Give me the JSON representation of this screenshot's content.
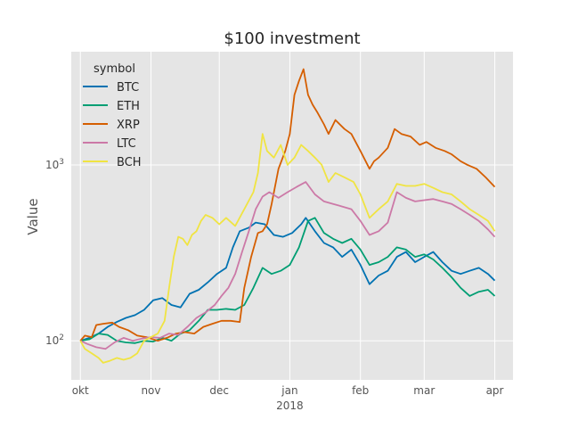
{
  "chart_data": {
    "type": "line",
    "title": "$100 investment",
    "xlabel": "",
    "ylabel": "Value",
    "yscale": "log",
    "ylim": [
      60,
      4400
    ],
    "xlim": [
      "2017-09-27",
      "2018-04-09"
    ],
    "x_ticks": [
      {
        "date": "2017-10-01",
        "label": "okt"
      },
      {
        "date": "2017-11-01",
        "label": "nov"
      },
      {
        "date": "2017-12-01",
        "label": "dec"
      },
      {
        "date": "2018-01-01",
        "label": "jan"
      },
      {
        "date": "2018-02-01",
        "label": "feb"
      },
      {
        "date": "2018-03-01",
        "label": "mar"
      },
      {
        "date": "2018-04-01",
        "label": "apr"
      }
    ],
    "x_year_label": {
      "date": "2018-01-01",
      "label": "2018"
    },
    "y_ticks": [
      {
        "value": 100,
        "base": "10",
        "exp": "2"
      },
      {
        "value": 1000,
        "base": "10",
        "exp": "3"
      }
    ],
    "grid": true,
    "legend": {
      "title": "symbol",
      "position": "top-left"
    },
    "series": [
      {
        "name": "BTC",
        "color": "#0072B2",
        "points": [
          [
            "2017-10-01",
            100
          ],
          [
            "2017-10-05",
            104
          ],
          [
            "2017-10-09",
            110
          ],
          [
            "2017-10-13",
            120
          ],
          [
            "2017-10-17",
            128
          ],
          [
            "2017-10-21",
            135
          ],
          [
            "2017-10-25",
            140
          ],
          [
            "2017-10-29",
            150
          ],
          [
            "2017-11-02",
            170
          ],
          [
            "2017-11-06",
            175
          ],
          [
            "2017-11-10",
            160
          ],
          [
            "2017-11-14",
            155
          ],
          [
            "2017-11-18",
            185
          ],
          [
            "2017-11-22",
            195
          ],
          [
            "2017-11-26",
            215
          ],
          [
            "2017-11-30",
            240
          ],
          [
            "2017-12-04",
            260
          ],
          [
            "2017-12-07",
            340
          ],
          [
            "2017-12-10",
            420
          ],
          [
            "2017-12-14,",
            440
          ],
          [
            "2017-12-17",
            470
          ],
          [
            "2017-12-21",
            460
          ],
          [
            "2017-12-25",
            400
          ],
          [
            "2017-12-29",
            390
          ],
          [
            "2018-01-02",
            410
          ],
          [
            "2018-01-06",
            460
          ],
          [
            "2018-01-08",
            500
          ],
          [
            "2018-01-12",
            420
          ],
          [
            "2018-01-16",
            360
          ],
          [
            "2018-01-20",
            340
          ],
          [
            "2018-01-24",
            300
          ],
          [
            "2018-01-28",
            330
          ],
          [
            "2018-02-01",
            270
          ],
          [
            "2018-02-05",
            210
          ],
          [
            "2018-02-09",
            235
          ],
          [
            "2018-02-13",
            250
          ],
          [
            "2018-02-17",
            300
          ],
          [
            "2018-02-21",
            320
          ],
          [
            "2018-02-25",
            280
          ],
          [
            "2018-03-01",
            300
          ],
          [
            "2018-03-05",
            320
          ],
          [
            "2018-03-09",
            280
          ],
          [
            "2018-03-13",
            250
          ],
          [
            "2018-03-17",
            240
          ],
          [
            "2018-03-21",
            250
          ],
          [
            "2018-03-25",
            260
          ],
          [
            "2018-03-29",
            240
          ],
          [
            "2018-04-01",
            220
          ]
        ]
      },
      {
        "name": "ETH",
        "color": "#009E73",
        "points": [
          [
            "2017-10-01",
            100
          ],
          [
            "2017-10-05",
            102
          ],
          [
            "2017-10-09",
            110
          ],
          [
            "2017-10-13",
            108
          ],
          [
            "2017-10-17",
            100
          ],
          [
            "2017-10-21",
            98
          ],
          [
            "2017-10-25",
            97
          ],
          [
            "2017-10-29",
            100
          ],
          [
            "2017-11-02",
            99
          ],
          [
            "2017-11-06",
            104
          ],
          [
            "2017-11-10",
            100
          ],
          [
            "2017-11-14",
            110
          ],
          [
            "2017-11-18",
            115
          ],
          [
            "2017-11-22",
            130
          ],
          [
            "2017-11-26",
            150
          ],
          [
            "2017-11-30",
            150
          ],
          [
            "2017-12-04",
            152
          ],
          [
            "2017-12-08",
            150
          ],
          [
            "2017-12-12",
            160
          ],
          [
            "2017-12-16",
            200
          ],
          [
            "2017-12-20",
            260
          ],
          [
            "2017-12-24",
            240
          ],
          [
            "2017-12-28",
            250
          ],
          [
            "2018-01-01",
            270
          ],
          [
            "2018-01-05",
            340
          ],
          [
            "2018-01-09",
            480
          ],
          [
            "2018-01-12",
            500
          ],
          [
            "2018-01-16",
            410
          ],
          [
            "2018-01-20",
            380
          ],
          [
            "2018-01-24",
            360
          ],
          [
            "2018-01-28",
            380
          ],
          [
            "2018-02-01",
            330
          ],
          [
            "2018-02-05",
            270
          ],
          [
            "2018-02-09",
            280
          ],
          [
            "2018-02-13",
            300
          ],
          [
            "2018-02-17",
            340
          ],
          [
            "2018-02-21",
            330
          ],
          [
            "2018-02-25",
            300
          ],
          [
            "2018-03-01",
            310
          ],
          [
            "2018-03-05",
            290
          ],
          [
            "2018-03-09",
            260
          ],
          [
            "2018-03-13",
            230
          ],
          [
            "2018-03-17",
            200
          ],
          [
            "2018-03-21",
            180
          ],
          [
            "2018-03-25",
            190
          ],
          [
            "2018-03-29",
            195
          ],
          [
            "2018-04-01",
            180
          ]
        ]
      },
      {
        "name": "XRP",
        "color": "#D55E00",
        "points": [
          [
            "2017-10-01",
            100
          ],
          [
            "2017-10-03",
            107
          ],
          [
            "2017-10-06",
            105
          ],
          [
            "2017-10-08",
            123
          ],
          [
            "2017-10-11",
            125
          ],
          [
            "2017-10-15",
            127
          ],
          [
            "2017-10-18",
            120
          ],
          [
            "2017-10-22",
            115
          ],
          [
            "2017-10-26",
            107
          ],
          [
            "2017-10-30",
            105
          ],
          [
            "2017-11-04",
            100
          ],
          [
            "2017-11-08",
            104
          ],
          [
            "2017-11-12",
            110
          ],
          [
            "2017-11-16",
            112
          ],
          [
            "2017-11-20",
            110
          ],
          [
            "2017-11-24",
            120
          ],
          [
            "2017-11-28",
            125
          ],
          [
            "2017-12-02",
            130
          ],
          [
            "2017-12-06",
            130
          ],
          [
            "2017-12-10",
            128
          ],
          [
            "2017-12-12",
            200
          ],
          [
            "2017-12-15",
            300
          ],
          [
            "2017-12-18",
            410
          ],
          [
            "2017-12-20",
            420
          ],
          [
            "2017-12-22",
            460
          ],
          [
            "2017-12-24",
            600
          ],
          [
            "2017-12-27",
            950
          ],
          [
            "2017-12-30",
            1200
          ],
          [
            "2018-01-01",
            1500
          ],
          [
            "2018-01-03",
            2500
          ],
          [
            "2018-01-05",
            3000
          ],
          [
            "2018-01-07",
            3500
          ],
          [
            "2018-01-09",
            2500
          ],
          [
            "2018-01-11",
            2200
          ],
          [
            "2018-01-13",
            2000
          ],
          [
            "2018-01-16",
            1700
          ],
          [
            "2018-01-18",
            1500
          ],
          [
            "2018-01-21",
            1800
          ],
          [
            "2018-01-25",
            1600
          ],
          [
            "2018-01-28",
            1500
          ],
          [
            "2018-02-01",
            1200
          ],
          [
            "2018-02-05",
            950
          ],
          [
            "2018-02-07",
            1050
          ],
          [
            "2018-02-09",
            1100
          ],
          [
            "2018-02-13",
            1250
          ],
          [
            "2018-02-16",
            1600
          ],
          [
            "2018-02-19",
            1500
          ],
          [
            "2018-02-23",
            1450
          ],
          [
            "2018-02-27",
            1300
          ],
          [
            "2018-03-02",
            1350
          ],
          [
            "2018-03-06",
            1250
          ],
          [
            "2018-03-10",
            1200
          ],
          [
            "2018-03-13",
            1150
          ],
          [
            "2018-03-17",
            1050
          ],
          [
            "2018-03-20",
            1000
          ],
          [
            "2018-03-24",
            950
          ],
          [
            "2018-03-28",
            850
          ],
          [
            "2018-04-01",
            750
          ]
        ]
      },
      {
        "name": "LTC",
        "color": "#CC79A7",
        "points": [
          [
            "2017-10-01",
            100
          ],
          [
            "2017-10-04",
            96
          ],
          [
            "2017-10-08",
            92
          ],
          [
            "2017-10-12",
            90
          ],
          [
            "2017-10-16",
            98
          ],
          [
            "2017-10-20",
            104
          ],
          [
            "2017-10-24",
            100
          ],
          [
            "2017-10-28",
            103
          ],
          [
            "2017-11-01",
            105
          ],
          [
            "2017-11-05",
            104
          ],
          [
            "2017-11-09",
            110
          ],
          [
            "2017-11-13",
            108
          ],
          [
            "2017-11-17",
            120
          ],
          [
            "2017-11-21",
            135
          ],
          [
            "2017-11-25",
            145
          ],
          [
            "2017-11-29",
            160
          ],
          [
            "2017-12-02",
            180
          ],
          [
            "2017-12-05",
            200
          ],
          [
            "2017-12-08",
            240
          ],
          [
            "2017-12-11",
            320
          ],
          [
            "2017-12-14",
            420
          ],
          [
            "2017-12-17",
            560
          ],
          [
            "2017-12-20",
            660
          ],
          [
            "2017-12-23",
            700
          ],
          [
            "2017-12-27",
            650
          ],
          [
            "2017-12-31",
            700
          ],
          [
            "2018-01-04",
            750
          ],
          [
            "2018-01-08",
            800
          ],
          [
            "2018-01-12",
            680
          ],
          [
            "2018-01-16",
            620
          ],
          [
            "2018-01-20",
            600
          ],
          [
            "2018-01-24",
            580
          ],
          [
            "2018-01-28",
            560
          ],
          [
            "2018-02-01",
            480
          ],
          [
            "2018-02-05",
            400
          ],
          [
            "2018-02-09",
            420
          ],
          [
            "2018-02-13",
            470
          ],
          [
            "2018-02-17",
            700
          ],
          [
            "2018-02-21",
            650
          ],
          [
            "2018-02-25",
            620
          ],
          [
            "2018-03-01",
            630
          ],
          [
            "2018-03-05",
            640
          ],
          [
            "2018-03-09",
            620
          ],
          [
            "2018-03-13",
            600
          ],
          [
            "2018-03-17",
            560
          ],
          [
            "2018-03-21",
            520
          ],
          [
            "2018-03-25",
            480
          ],
          [
            "2018-03-29",
            430
          ],
          [
            "2018-04-01",
            390
          ]
        ]
      },
      {
        "name": "BCH",
        "color": "#F0E442",
        "points": [
          [
            "2017-10-01",
            100
          ],
          [
            "2017-10-03",
            90
          ],
          [
            "2017-10-06",
            85
          ],
          [
            "2017-10-09",
            80
          ],
          [
            "2017-10-11",
            75
          ],
          [
            "2017-10-14",
            77
          ],
          [
            "2017-10-17",
            80
          ],
          [
            "2017-10-20",
            78
          ],
          [
            "2017-10-23",
            80
          ],
          [
            "2017-10-26",
            85
          ],
          [
            "2017-10-29",
            100
          ],
          [
            "2017-11-01",
            105
          ],
          [
            "2017-11-04",
            110
          ],
          [
            "2017-11-07",
            130
          ],
          [
            "2017-11-09",
            200
          ],
          [
            "2017-11-11",
            300
          ],
          [
            "2017-11-13",
            390
          ],
          [
            "2017-11-15",
            380
          ],
          [
            "2017-11-17",
            350
          ],
          [
            "2017-11-19",
            400
          ],
          [
            "2017-11-21",
            420
          ],
          [
            "2017-11-23",
            480
          ],
          [
            "2017-11-25",
            520
          ],
          [
            "2017-11-28",
            500
          ],
          [
            "2017-12-01",
            460
          ],
          [
            "2017-12-04",
            500
          ],
          [
            "2017-12-08",
            450
          ],
          [
            "2017-12-12",
            560
          ],
          [
            "2017-12-16",
            700
          ],
          [
            "2017-12-18",
            900
          ],
          [
            "2017-12-20",
            1500
          ],
          [
            "2017-12-22",
            1200
          ],
          [
            "2017-12-25",
            1100
          ],
          [
            "2017-12-28",
            1300
          ],
          [
            "2017-12-31",
            1000
          ],
          [
            "2018-01-03",
            1100
          ],
          [
            "2018-01-06",
            1300
          ],
          [
            "2018-01-09",
            1200
          ],
          [
            "2018-01-12",
            1100
          ],
          [
            "2018-01-15",
            1000
          ],
          [
            "2018-01-18",
            800
          ],
          [
            "2018-01-21",
            900
          ],
          [
            "2018-01-25",
            850
          ],
          [
            "2018-01-29",
            800
          ],
          [
            "2018-02-01",
            680
          ],
          [
            "2018-02-05",
            500
          ],
          [
            "2018-02-09",
            560
          ],
          [
            "2018-02-13",
            620
          ],
          [
            "2018-02-17",
            780
          ],
          [
            "2018-02-21",
            760
          ],
          [
            "2018-02-25",
            760
          ],
          [
            "2018-03-01",
            780
          ],
          [
            "2018-03-05",
            740
          ],
          [
            "2018-03-09",
            700
          ],
          [
            "2018-03-13",
            680
          ],
          [
            "2018-03-17",
            620
          ],
          [
            "2018-03-21",
            560
          ],
          [
            "2018-03-25",
            520
          ],
          [
            "2018-03-29",
            480
          ],
          [
            "2018-04-01",
            420
          ]
        ]
      }
    ]
  }
}
